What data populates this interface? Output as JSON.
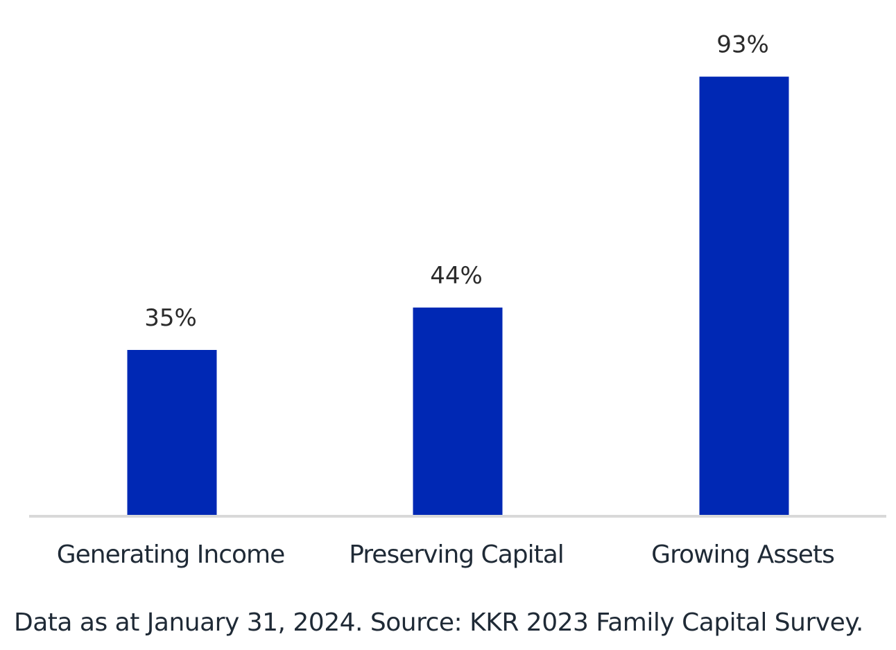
{
  "chart_data": {
    "type": "bar",
    "categories": [
      "Generating Income",
      "Preserving Capital",
      "Growing Assets"
    ],
    "values": [
      35,
      44,
      93
    ],
    "value_labels": [
      "35%",
      "44%",
      "93%"
    ],
    "ylim": [
      0,
      100
    ],
    "grid": false,
    "legend": "none",
    "bar_color": "#0028b4",
    "axis_color": "#d9d9d9"
  },
  "footnote": "Data as at January 31, 2024. Source: KKR 2023 Family Capital Survey."
}
